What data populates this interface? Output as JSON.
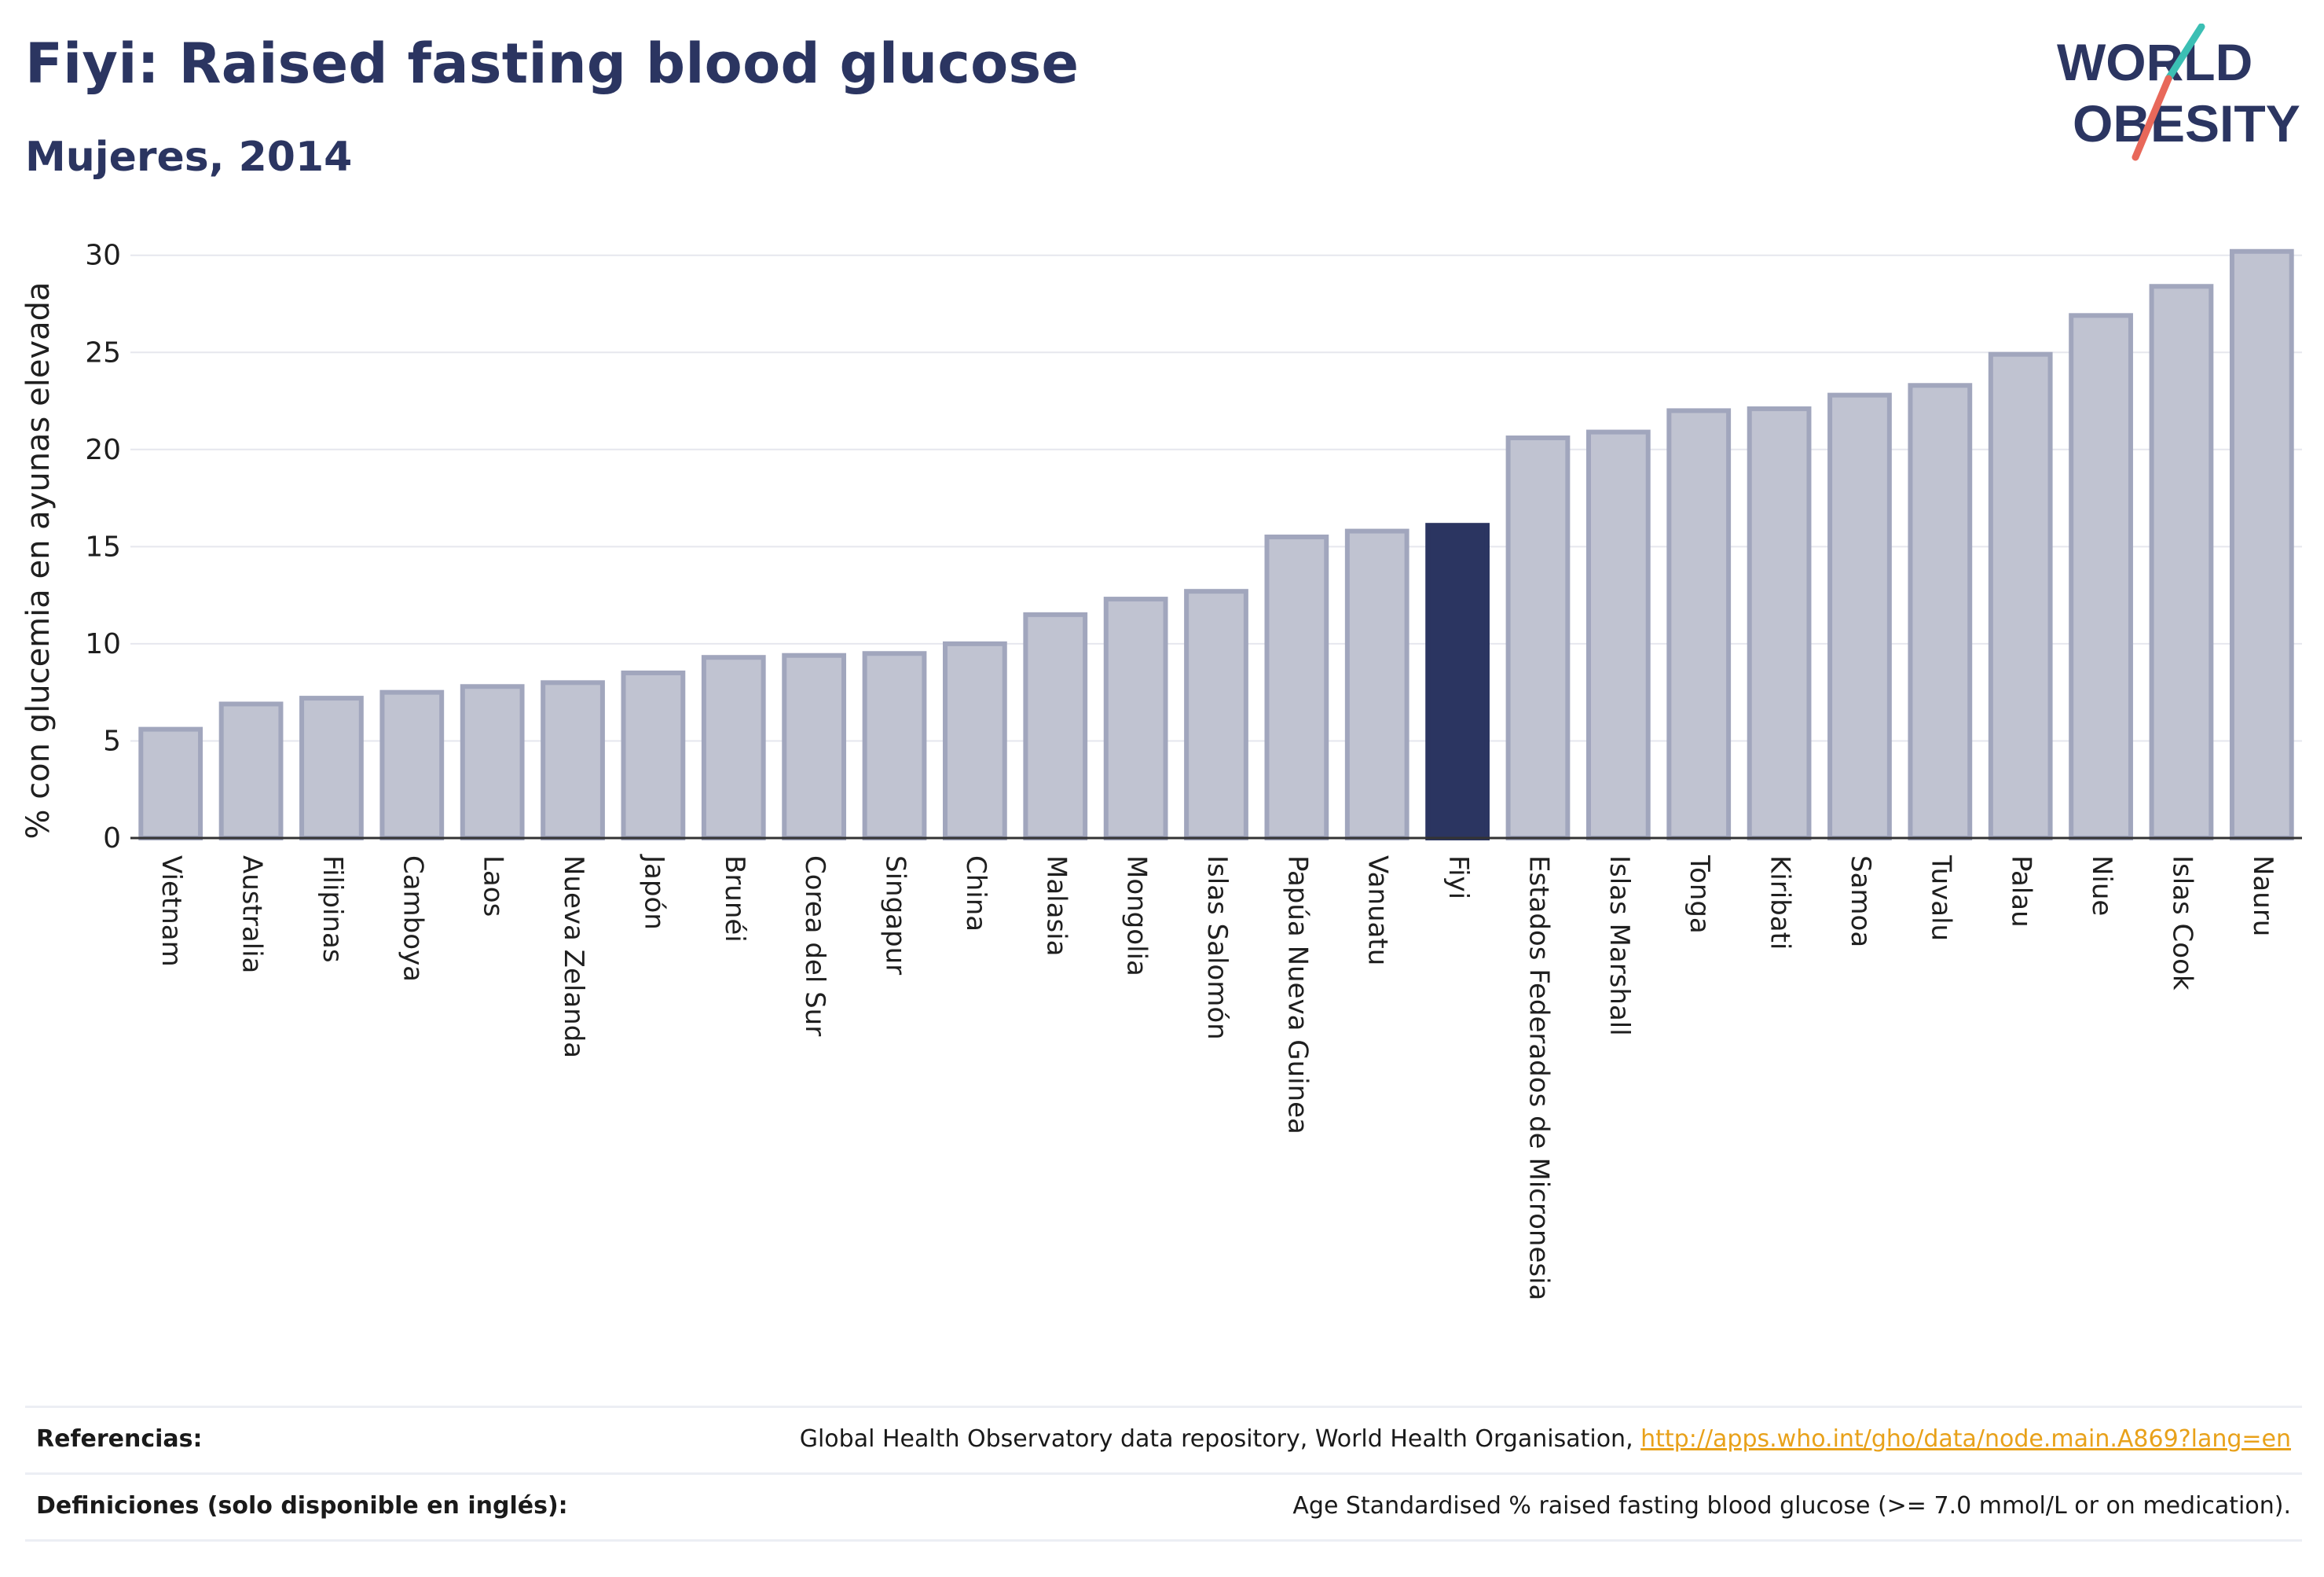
{
  "header": {
    "title": "Fiyi: Raised fasting blood glucose",
    "subtitle": "Mujeres, 2014"
  },
  "logo": {
    "line1": "WORLD",
    "line2": "OBESITY",
    "colors": {
      "text": "#2b3561",
      "slash_teal": "#3bbfb4",
      "slash_coral": "#e8685a"
    }
  },
  "colors": {
    "bar": "#c0c3d1",
    "bar_stroke": "#a1a6bd",
    "highlight": "#2b3561",
    "grid": "#e6e7ee",
    "axis": "#333333"
  },
  "chart_data": {
    "type": "bar",
    "ylabel": "% con glucemia en ayunas elevada",
    "ylim": [
      0,
      31
    ],
    "yticks": [
      0,
      5,
      10,
      15,
      20,
      25,
      30
    ],
    "grid": true,
    "highlight": "Fiyi",
    "categories": [
      "Vietnam",
      "Australia",
      "Filipinas",
      "Camboya",
      "Laos",
      "Nueva Zelanda",
      "Japón",
      "Brunéi",
      "Corea del Sur",
      "Singapur",
      "China",
      "Malasia",
      "Mongolia",
      "Islas Salomón",
      "Papúa Nueva Guinea",
      "Vanuatu",
      "Fiyi",
      "Estados Federados de Micronesia",
      "Islas Marshall",
      "Tonga",
      "Kiribati",
      "Samoa",
      "Tuvalu",
      "Palau",
      "Niue",
      "Islas Cook",
      "Nauru"
    ],
    "values": [
      5.6,
      6.9,
      7.2,
      7.5,
      7.8,
      8.0,
      8.5,
      9.3,
      9.4,
      9.5,
      10.0,
      11.5,
      12.3,
      12.7,
      15.5,
      15.8,
      16.1,
      20.6,
      20.9,
      22.0,
      22.1,
      22.8,
      23.3,
      24.9,
      26.9,
      28.4,
      30.2
    ]
  },
  "footer": {
    "references_label": "Referencias:",
    "references_text": "Global Health Observatory data repository, World Health Organisation, ",
    "references_link": "http://apps.who.int/gho/data/node.main.A869?lang=en",
    "definitions_label": "Definiciones (solo disponible en inglés):",
    "definitions_text": "Age Standardised % raised fasting blood glucose (>= 7.0 mmol/L or on medication)."
  }
}
